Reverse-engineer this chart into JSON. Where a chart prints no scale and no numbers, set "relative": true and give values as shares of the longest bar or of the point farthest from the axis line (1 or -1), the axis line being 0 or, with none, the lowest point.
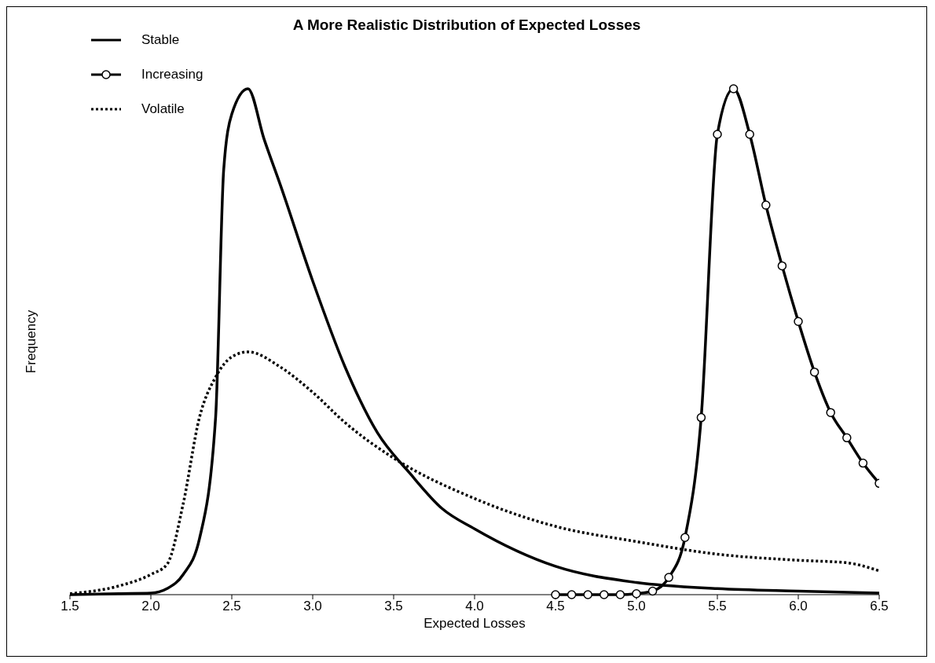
{
  "chart_data": {
    "type": "line",
    "title": "A More Realistic Distribution of Expected Losses",
    "xlabel": "Expected Losses",
    "ylabel": "Frequency",
    "relative": true,
    "xlim": [
      1.5,
      6.5
    ],
    "xticks": [
      {
        "value": 1.5,
        "label": "1.5"
      },
      {
        "value": 2,
        "label": "2.0"
      },
      {
        "value": 2.5,
        "label": "2.5"
      },
      {
        "value": 3,
        "label": "3.0"
      },
      {
        "value": 3.5,
        "label": "3.5"
      },
      {
        "value": 4,
        "label": "4.0"
      },
      {
        "value": 4.5,
        "label": "4.5"
      },
      {
        "value": 5,
        "label": "5.0"
      },
      {
        "value": 5.5,
        "label": "5.5"
      },
      {
        "value": 6,
        "label": "6.0"
      },
      {
        "value": 6.5,
        "label": "6.5"
      }
    ],
    "legend": "top left",
    "series": [
      {
        "name": "Stable",
        "color": "#000000",
        "marker": "none",
        "line_style": "solid",
        "x": [
          1.5,
          1.8,
          2.0,
          2.1,
          2.2,
          2.3,
          2.4,
          2.45,
          2.5,
          2.6,
          2.7,
          2.8,
          3.0,
          3.2,
          3.4,
          3.6,
          3.8,
          4.0,
          4.5,
          5.0,
          5.5,
          6.0,
          6.5
        ],
        "values": [
          0,
          0.002,
          0.003,
          0.012,
          0.04,
          0.11,
          0.35,
          0.84,
          0.95,
          1.0,
          0.9,
          0.81,
          0.62,
          0.45,
          0.32,
          0.24,
          0.17,
          0.13,
          0.056,
          0.024,
          0.012,
          0.007,
          0.003
        ]
      },
      {
        "name": "Increasing",
        "color": "#000000",
        "marker": "circle",
        "line_style": "solid",
        "x": [
          4.5,
          4.6,
          4.7,
          4.8,
          4.9,
          5.0,
          5.1,
          5.2,
          5.3,
          5.4,
          5.5,
          5.6,
          5.7,
          5.8,
          5.9,
          6.0,
          6.1,
          6.2,
          6.3,
          6.4,
          6.5
        ],
        "values": [
          0,
          0,
          0,
          0,
          0,
          0.002,
          0.007,
          0.034,
          0.113,
          0.35,
          0.91,
          1.0,
          0.91,
          0.77,
          0.65,
          0.54,
          0.44,
          0.36,
          0.31,
          0.26,
          0.22
        ]
      },
      {
        "name": "Volatile",
        "color": "#000000",
        "marker": "none",
        "line_style": "dotted",
        "x": [
          1.5,
          1.8,
          2.0,
          2.1,
          2.2,
          2.3,
          2.4,
          2.5,
          2.6,
          2.8,
          3.0,
          3.2,
          3.5,
          4.0,
          4.5,
          5.0,
          5.5,
          6.0,
          6.3,
          6.5
        ],
        "values": [
          0.002,
          0.017,
          0.04,
          0.06,
          0.18,
          0.35,
          0.43,
          0.47,
          0.48,
          0.45,
          0.4,
          0.34,
          0.27,
          0.19,
          0.135,
          0.105,
          0.08,
          0.068,
          0.063,
          0.047
        ]
      }
    ]
  }
}
